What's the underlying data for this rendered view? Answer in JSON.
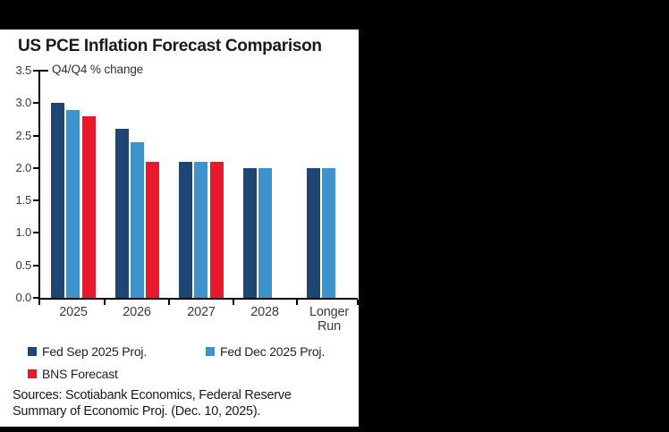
{
  "page": {
    "background_color": "#000000",
    "panel_background_color": "#ffffff"
  },
  "chart_data": {
    "type": "bar",
    "title": "US PCE Inflation Forecast Comparison",
    "y_axis_note": "Q4/Q4 % change",
    "categories": [
      "2025",
      "2026",
      "2027",
      "2028",
      "Longer Run"
    ],
    "series": [
      {
        "name": "Fed Sep 2025 Proj.",
        "color": "#1f4574",
        "values": [
          3.0,
          2.6,
          2.1,
          2.0,
          2.0
        ]
      },
      {
        "name": "Fed Dec 2025 Proj.",
        "color": "#3d93cc",
        "values": [
          2.9,
          2.4,
          2.1,
          2.0,
          2.0
        ]
      },
      {
        "name": "BNS Forecast",
        "color": "#e8192c",
        "values": [
          2.8,
          2.1,
          2.1,
          null,
          null
        ]
      }
    ],
    "ylim": [
      0,
      3.5
    ],
    "y_ticks": [
      "3.5",
      "3.0",
      "2.5",
      "2.0",
      "1.5",
      "1.0",
      "0.5",
      "0.0"
    ],
    "grid": false,
    "legend_position": "below",
    "axis_color": "#000000"
  },
  "footer": {
    "sources_lines": [
      "Sources: Scotiabank Economics, Federal Reserve",
      "Summary of Economic Proj. (Dec. 10, 2025)."
    ]
  }
}
